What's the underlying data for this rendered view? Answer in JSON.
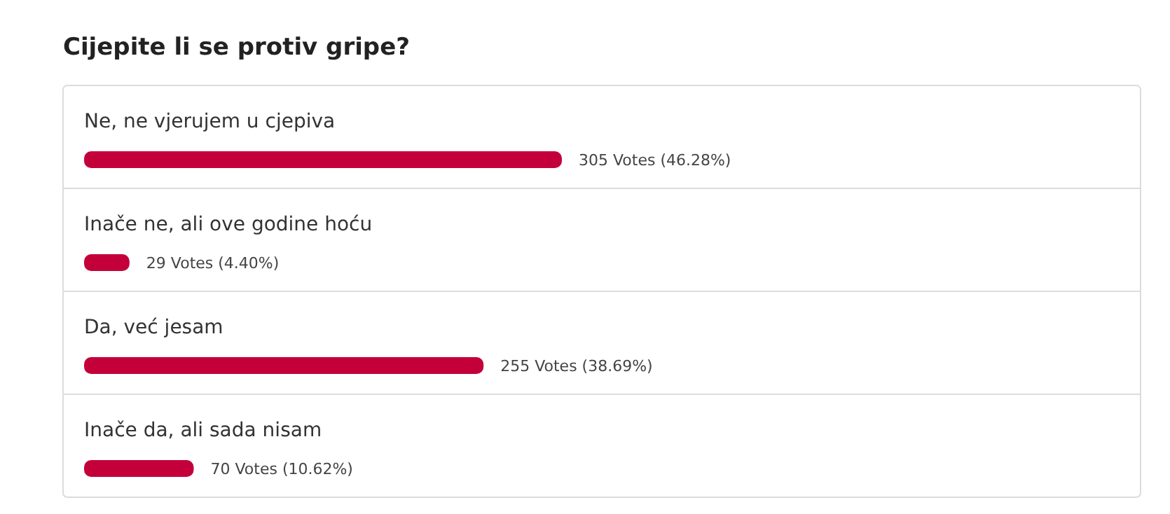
{
  "chart_data": {
    "type": "bar",
    "orientation": "horizontal",
    "title": "Cijepite li se protiv gripe?",
    "categories": [
      "Ne, ne vjerujem u cjepiva",
      "Inače ne, ali ove godine hoću",
      "Da, već jesam",
      "Inače da, ali sada nisam"
    ],
    "values": [
      305,
      29,
      255,
      70
    ],
    "value_labels": [
      "305 Votes (46.28%)",
      "29 Votes (4.40%)",
      "255 Votes (38.69%)",
      "70 Votes (10.62%)"
    ],
    "color": "#c4003a"
  }
}
